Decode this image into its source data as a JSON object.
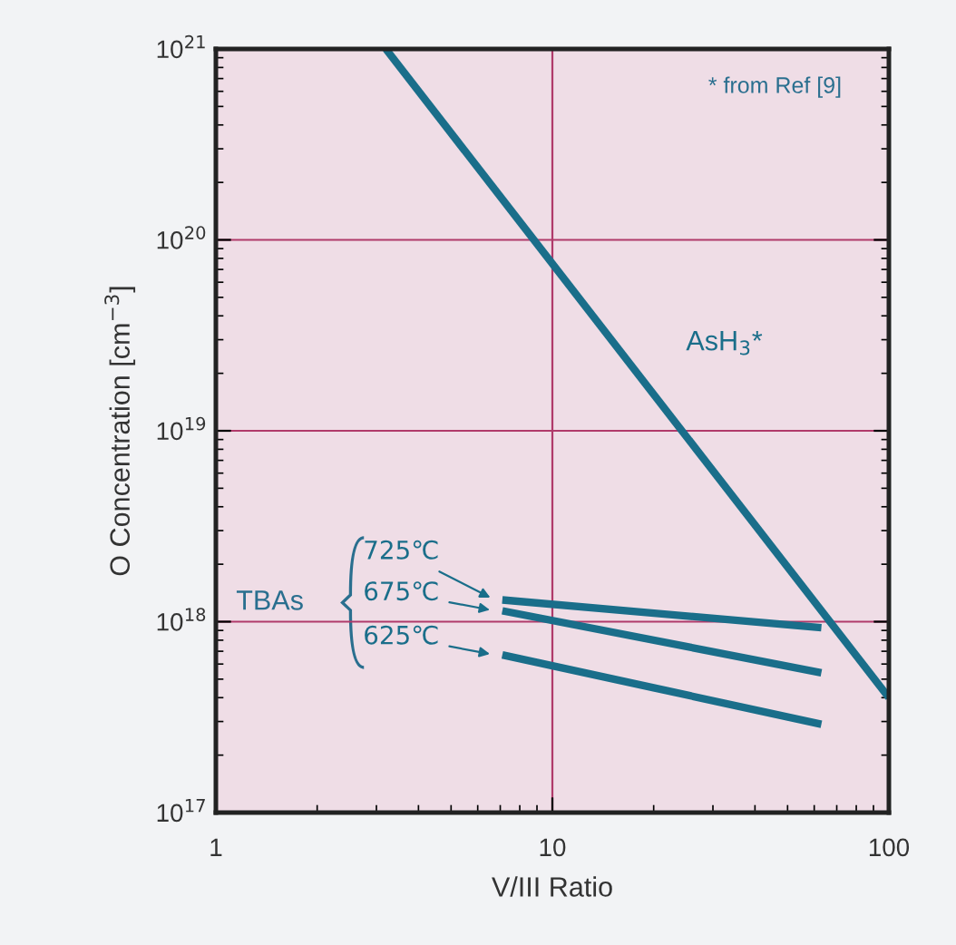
{
  "chart_data": {
    "type": "line",
    "xlabel": "V/III Ratio",
    "ylabel": "O Concentration [cm$^{−3}$]",
    "log": "xy",
    "xlim": [
      1,
      100
    ],
    "ylim": [
      1e+17,
      1e+21
    ],
    "xticks": [
      1,
      10,
      100
    ],
    "yticks": [
      {
        "value": 1e+17,
        "label": "10$^{17}$"
      },
      {
        "value": 1e+18,
        "label": "10$^{18}$"
      },
      {
        "value": 1e+19,
        "label": "10$^{19}$"
      },
      {
        "value": 1e+20,
        "label": "10$^{20}$"
      },
      {
        "value": 1e+21,
        "label": "10$^{21}$"
      }
    ],
    "grid": true,
    "legend": "left",
    "marker": "none",
    "line_style": "solid",
    "annotations": [
      "* from Ref [9]",
      "TBAs"
    ],
    "series": [
      {
        "name": "AsH$_{3}$*",
        "color": "#1a6e8a",
        "x": [
          3.2,
          100
        ],
        "values": [
          1e+21,
          4e+17
        ]
      },
      {
        "name": "725℃",
        "color": "#1a6e8a",
        "x": [
          7.1,
          63
        ],
        "values": [
          1.3e+18,
          9.3e+17
        ]
      },
      {
        "name": "675℃",
        "color": "#1a6e8a",
        "x": [
          7.1,
          63
        ],
        "values": [
          1.14e+18,
          5.4e+17
        ]
      },
      {
        "name": "625℃",
        "color": "#1a6e8a",
        "x": [
          7.1,
          63
        ],
        "values": [
          6.7e+17,
          2.9e+17
        ]
      }
    ]
  }
}
